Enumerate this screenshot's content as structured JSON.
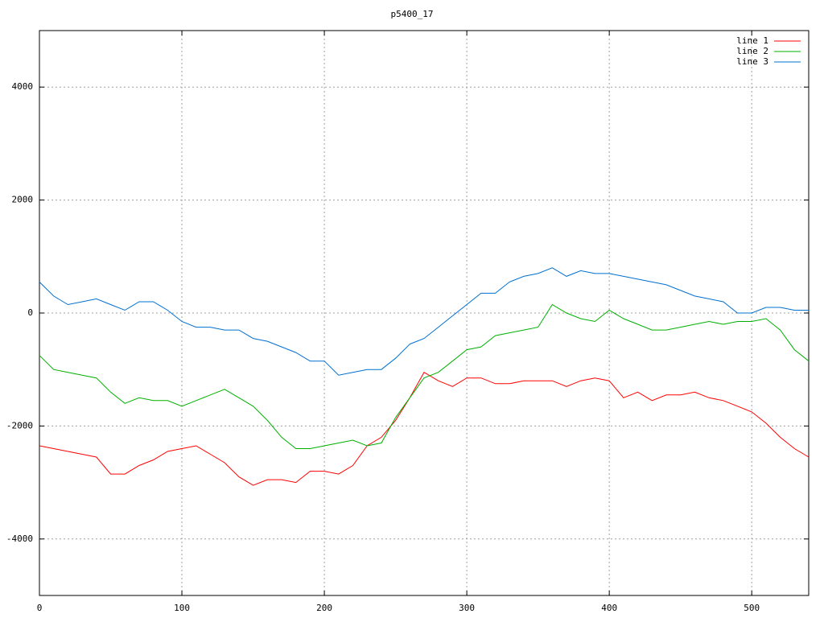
{
  "chart_data": {
    "type": "line",
    "title": "p5400_17",
    "x": [
      0,
      10,
      20,
      30,
      40,
      50,
      60,
      70,
      80,
      90,
      100,
      110,
      120,
      130,
      140,
      150,
      160,
      170,
      180,
      190,
      200,
      210,
      220,
      230,
      240,
      250,
      260,
      270,
      280,
      290,
      300,
      310,
      320,
      330,
      340,
      350,
      360,
      370,
      380,
      390,
      400,
      410,
      420,
      430,
      440,
      450,
      460,
      470,
      480,
      490,
      500,
      510,
      520,
      530,
      540
    ],
    "series": [
      {
        "name": "line 1",
        "color": "#ff0000",
        "values": [
          -2350,
          -2400,
          -2450,
          -2500,
          -2550,
          -2850,
          -2850,
          -2700,
          -2600,
          -2450,
          -2400,
          -2350,
          -2500,
          -2650,
          -2900,
          -3050,
          -2950,
          -2950,
          -3000,
          -2800,
          -2800,
          -2850,
          -2700,
          -2350,
          -2200,
          -1900,
          -1500,
          -1050,
          -1200,
          -1300,
          -1150,
          -1150,
          -1250,
          -1250,
          -1200,
          -1200,
          -1200,
          -1300,
          -1200,
          -1150,
          -1200,
          -1500,
          -1400,
          -1550,
          -1450,
          -1450,
          -1400,
          -1500,
          -1550,
          -1650,
          -1750,
          -1950,
          -2200,
          -2400,
          -2550
        ]
      },
      {
        "name": "line 2",
        "color": "#00b000",
        "values": [
          -750,
          -1000,
          -1050,
          -1100,
          -1150,
          -1400,
          -1600,
          -1500,
          -1550,
          -1550,
          -1650,
          -1550,
          -1450,
          -1350,
          -1500,
          -1650,
          -1900,
          -2200,
          -2400,
          -2400,
          -2350,
          -2300,
          -2250,
          -2350,
          -2300,
          -1850,
          -1500,
          -1150,
          -1050,
          -850,
          -650,
          -600,
          -400,
          -350,
          -300,
          -250,
          150,
          0,
          -100,
          -150,
          50,
          -100,
          -200,
          -300,
          -300,
          -250,
          -200,
          -150,
          -200,
          -150,
          -150,
          -100,
          -300,
          -650,
          -850
        ]
      },
      {
        "name": "line 3",
        "color": "#0070d0",
        "values": [
          550,
          300,
          150,
          200,
          250,
          150,
          50,
          200,
          200,
          50,
          -150,
          -250,
          -250,
          -300,
          -300,
          -450,
          -500,
          -600,
          -700,
          -850,
          -850,
          -1100,
          -1050,
          -1000,
          -1000,
          -800,
          -550,
          -450,
          -250,
          -50,
          150,
          350,
          350,
          550,
          650,
          700,
          800,
          650,
          750,
          700,
          700,
          650,
          600,
          550,
          500,
          400,
          300,
          250,
          200,
          0,
          0,
          100,
          100,
          50,
          50
        ]
      }
    ],
    "xlim": [
      0,
      540
    ],
    "xticks": [
      0,
      100,
      200,
      300,
      400,
      500
    ],
    "ylim": [
      -5000,
      5000
    ],
    "yticks": [
      -4000,
      -2000,
      0,
      2000,
      4000
    ],
    "grid": true,
    "legend": "top-right"
  }
}
